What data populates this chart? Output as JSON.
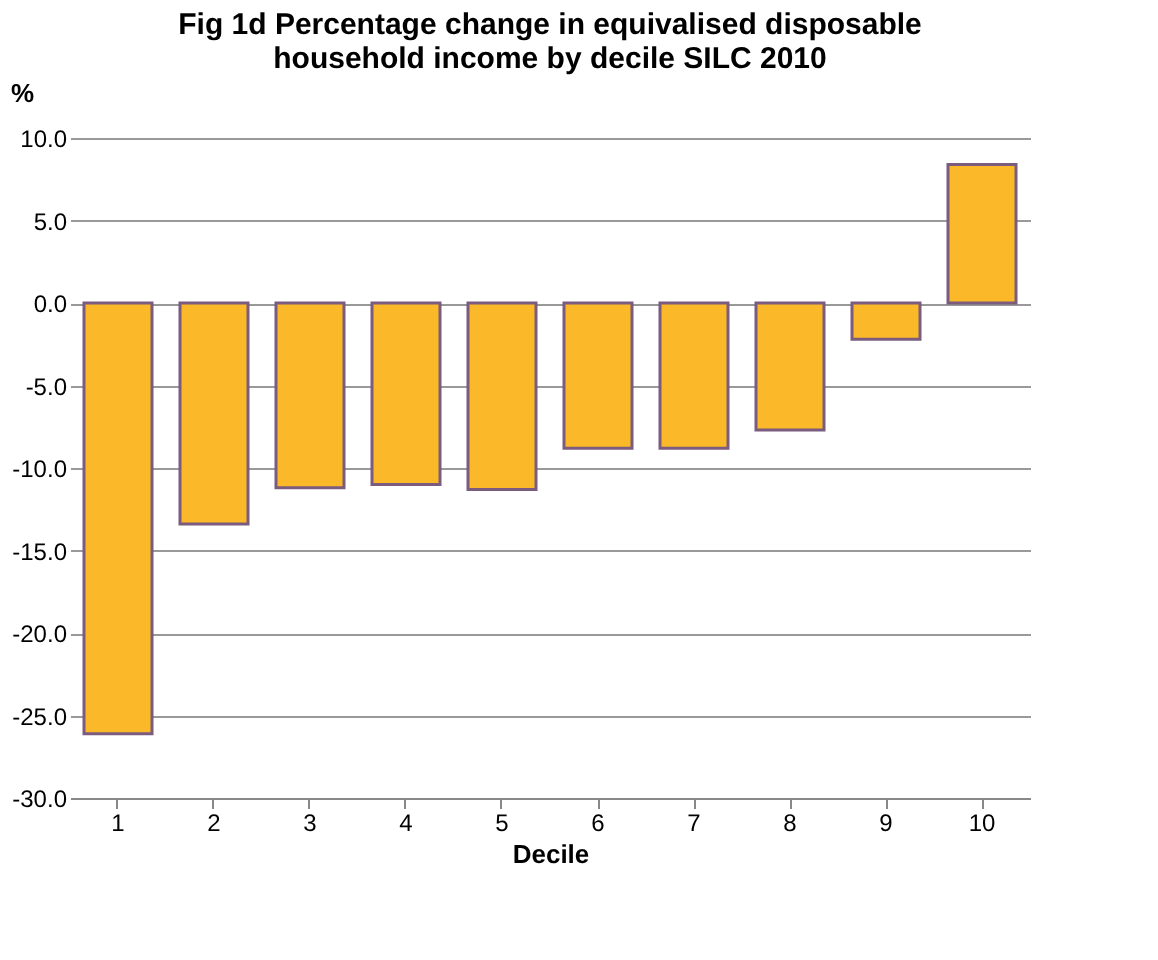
{
  "chart_data": {
    "type": "bar",
    "title": [
      "Fig 1d Percentage  change in equivalised disposable",
      "household income by decile SILC 2010"
    ],
    "xlabel": "Decile",
    "ylabel": "%",
    "categories": [
      "1",
      "2",
      "3",
      "4",
      "5",
      "6",
      "7",
      "8",
      "9",
      "10"
    ],
    "values": [
      -26.1,
      -13.4,
      -11.2,
      -11.0,
      -11.3,
      -8.8,
      -8.8,
      -7.7,
      -2.2,
      8.4
    ],
    "color": "#fbb829",
    "ylim": [
      -30,
      10
    ],
    "yticks": [
      {
        "value": -30,
        "label": "-30.0"
      },
      {
        "value": -25,
        "label": "-25.0"
      },
      {
        "value": -20,
        "label": "-20.0"
      },
      {
        "value": -15,
        "label": "-15.0"
      },
      {
        "value": -10,
        "label": "-10.0"
      },
      {
        "value": -5,
        "label": "-5.0"
      },
      {
        "value": 0,
        "label": "0.0"
      },
      {
        "value": 5,
        "label": "5.0"
      },
      {
        "value": 10,
        "label": "10.0"
      }
    ],
    "grid": "y"
  }
}
